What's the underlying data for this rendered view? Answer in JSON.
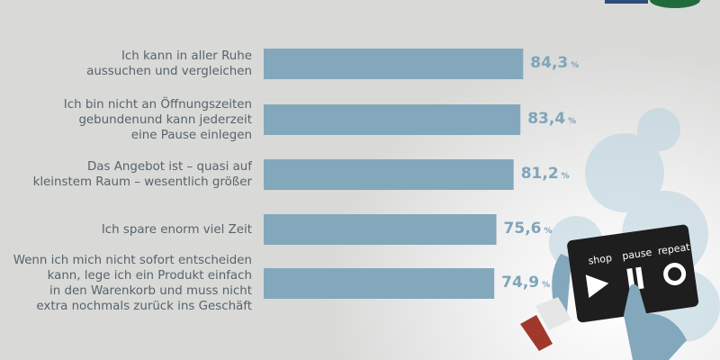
{
  "chart_data": {
    "type": "bar",
    "orientation": "horizontal",
    "categories": [
      "Ich kann in aller Ruhe\naussuchen und vergleichen",
      "Ich bin nicht an Öffnungszeiten\ngebundenund kann jederzeit\neine Pause einlegen",
      "Das Angebot ist – quasi auf\nkleinstem Raum – wesentlich größer",
      "Ich spare enorm viel Zeit",
      "Wenn ich mich nicht sofort entscheiden\nkann, lege ich ein Produkt einfach\nin den Warenkorb und muss nicht\nextra nochmals zurück ins Geschäft"
    ],
    "values": [
      84.3,
      83.4,
      81.2,
      75.6,
      74.9
    ],
    "value_labels": [
      "84,3",
      "83,4",
      "81,2",
      "75,6",
      "74,9"
    ],
    "unit": "%",
    "xlim": [
      0,
      100
    ],
    "grid": false,
    "bar_color": "#83a8bb",
    "value_color": "#7ea5b9"
  },
  "illustration": {
    "tablet_labels": [
      "shop",
      "pause",
      "repeat"
    ],
    "icons": [
      "play-icon",
      "pause-icon",
      "repeat-icon"
    ]
  }
}
